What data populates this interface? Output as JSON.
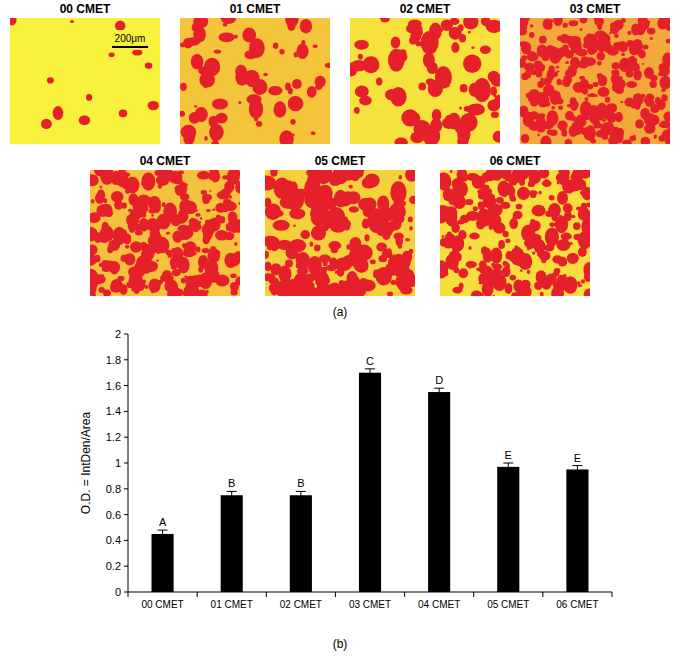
{
  "panel_a": {
    "label": "(a)",
    "images": [
      "00 CMET",
      "01 CMET",
      "02 CMET",
      "03 CMET",
      "04 CMET",
      "05 CMET",
      "06 CMET"
    ],
    "scale_bar": "200μm"
  },
  "panel_b": {
    "label": "(b)"
  },
  "chart_data": {
    "type": "bar",
    "y_label": "O.D. = IntDen/Area",
    "categories": [
      "00 CMET",
      "01 CMET",
      "02 CMET",
      "03 CMET",
      "04 CMET",
      "05 CMET",
      "06 CMET"
    ],
    "values": [
      0.45,
      0.75,
      0.75,
      1.7,
      1.55,
      0.97,
      0.95
    ],
    "errors": [
      0.03,
      0.03,
      0.03,
      0.03,
      0.03,
      0.03,
      0.03
    ],
    "annotations": [
      "A",
      "B",
      "B",
      "C",
      "D",
      "E",
      "E"
    ],
    "color": "#000000",
    "ylim": [
      0,
      2
    ],
    "yticks": [
      0,
      0.2,
      0.4,
      0.6,
      0.8,
      1,
      1.2,
      1.4,
      1.6,
      1.8,
      2
    ],
    "grid": false
  }
}
